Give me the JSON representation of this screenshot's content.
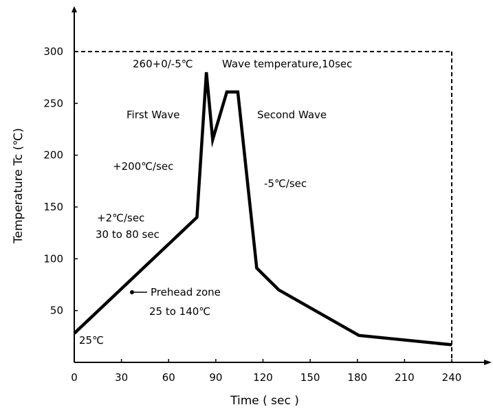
{
  "chart_data": {
    "type": "line",
    "xlabel": "Time ( sec )",
    "ylabel": "Temperature Tc (℃)",
    "xlim": [
      0,
      240
    ],
    "ylim": [
      0,
      300
    ],
    "x_ticks": [
      0,
      30,
      60,
      90,
      120,
      150,
      180,
      210,
      240
    ],
    "y_ticks": [
      50,
      100,
      150,
      200,
      250,
      300
    ],
    "grid": false,
    "series": [
      {
        "color": "#000000",
        "points": [
          {
            "x": 0,
            "y": 28
          },
          {
            "x": 78,
            "y": 140
          },
          {
            "x": 84,
            "y": 280
          },
          {
            "x": 88,
            "y": 215
          },
          {
            "x": 97,
            "y": 261
          },
          {
            "x": 104,
            "y": 261
          },
          {
            "x": 116,
            "y": 91
          },
          {
            "x": 130,
            "y": 70
          },
          {
            "x": 181,
            "y": 26
          },
          {
            "x": 240,
            "y": 17
          }
        ]
      }
    ],
    "boundary": {
      "time_limit": 240,
      "temperature_limit": 300,
      "style": "dashed"
    },
    "annotations": {
      "peak": "260+0/-5℃",
      "wave": "Wave temperature,10sec",
      "first_wave": "First Wave",
      "second_wave": "Second Wave",
      "rise_rate": "+200℃/sec",
      "fall_rate": "-5℃/sec",
      "preheat_rate": "+2℃/sec",
      "preheat_time": "30  to 80 sec",
      "preheat_zone": "Prehead zone",
      "preheat_range": "25 to 140℃",
      "start_temp": "25℃"
    }
  }
}
